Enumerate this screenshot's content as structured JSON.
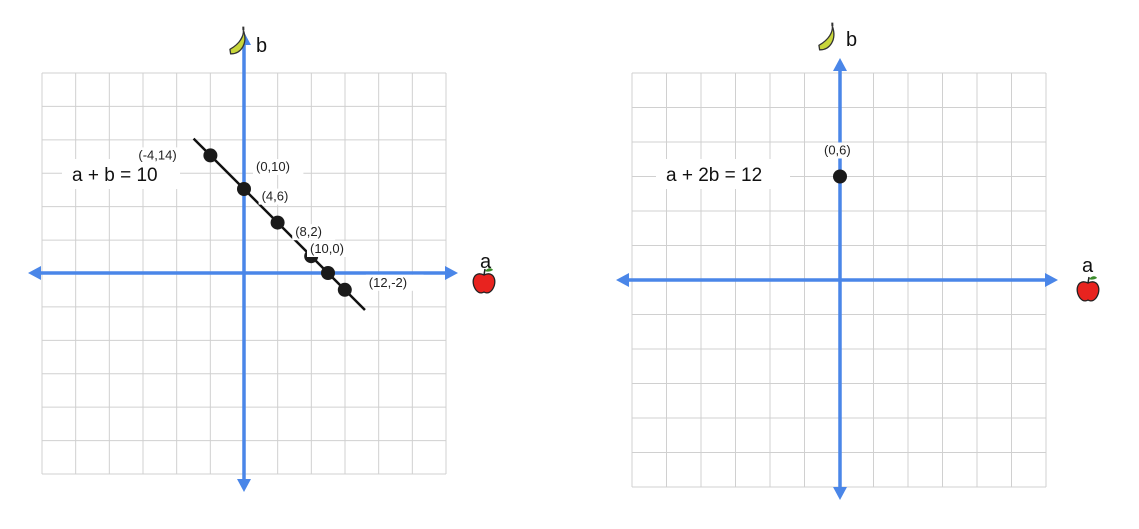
{
  "colors": {
    "grid": "#d0d0d0",
    "axis": "#4a86e8",
    "line": "#111111",
    "point": "#1a1a1a",
    "apple": "#e8231f",
    "banana": "#c8d63a"
  },
  "chart_data": [
    {
      "type": "line",
      "title": "",
      "equation_label": "a + b = 10",
      "xlabel": "a",
      "ylabel": "b",
      "x_icon": "apple-icon",
      "y_icon": "banana-icon",
      "grid": true,
      "series": [
        {
          "points": [
            {
              "x": -4,
              "y": 14,
              "label": "(-4,14)"
            },
            {
              "x": 0,
              "y": 10,
              "label": "(0,10)"
            },
            {
              "x": 4,
              "y": 6,
              "label": "(4,6)"
            },
            {
              "x": 8,
              "y": 2,
              "label": "(8,2)"
            },
            {
              "x": 10,
              "y": 0,
              "label": "(10,0)"
            },
            {
              "x": 12,
              "y": -2,
              "label": "(12,-2)"
            }
          ]
        }
      ]
    },
    {
      "type": "scatter",
      "title": "",
      "equation_label": "a + 2b = 12",
      "xlabel": "a",
      "ylabel": "b",
      "x_icon": "apple-icon",
      "y_icon": "banana-icon",
      "grid": true,
      "series": [
        {
          "points": [
            {
              "x": 0,
              "y": 6,
              "label": "(0,6)"
            }
          ]
        }
      ]
    }
  ]
}
